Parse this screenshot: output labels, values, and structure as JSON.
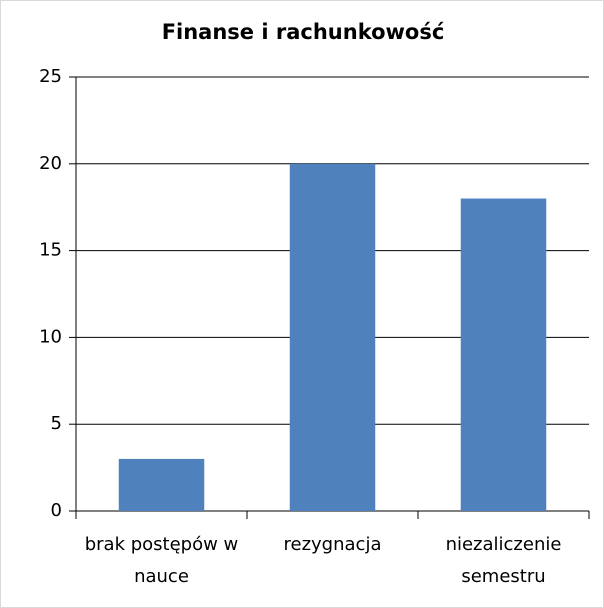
{
  "chart_data": {
    "type": "bar",
    "title": "Finanse i rachunkowość",
    "categories": [
      "brak postępów w nauce",
      "rezygnacja",
      "niezaliczenie semestru"
    ],
    "values": [
      3,
      20,
      18
    ],
    "color": "#4f81bd",
    "ylim": [
      0,
      25
    ],
    "yticks": [
      0,
      5,
      10,
      15,
      20,
      25
    ],
    "grid": true
  }
}
